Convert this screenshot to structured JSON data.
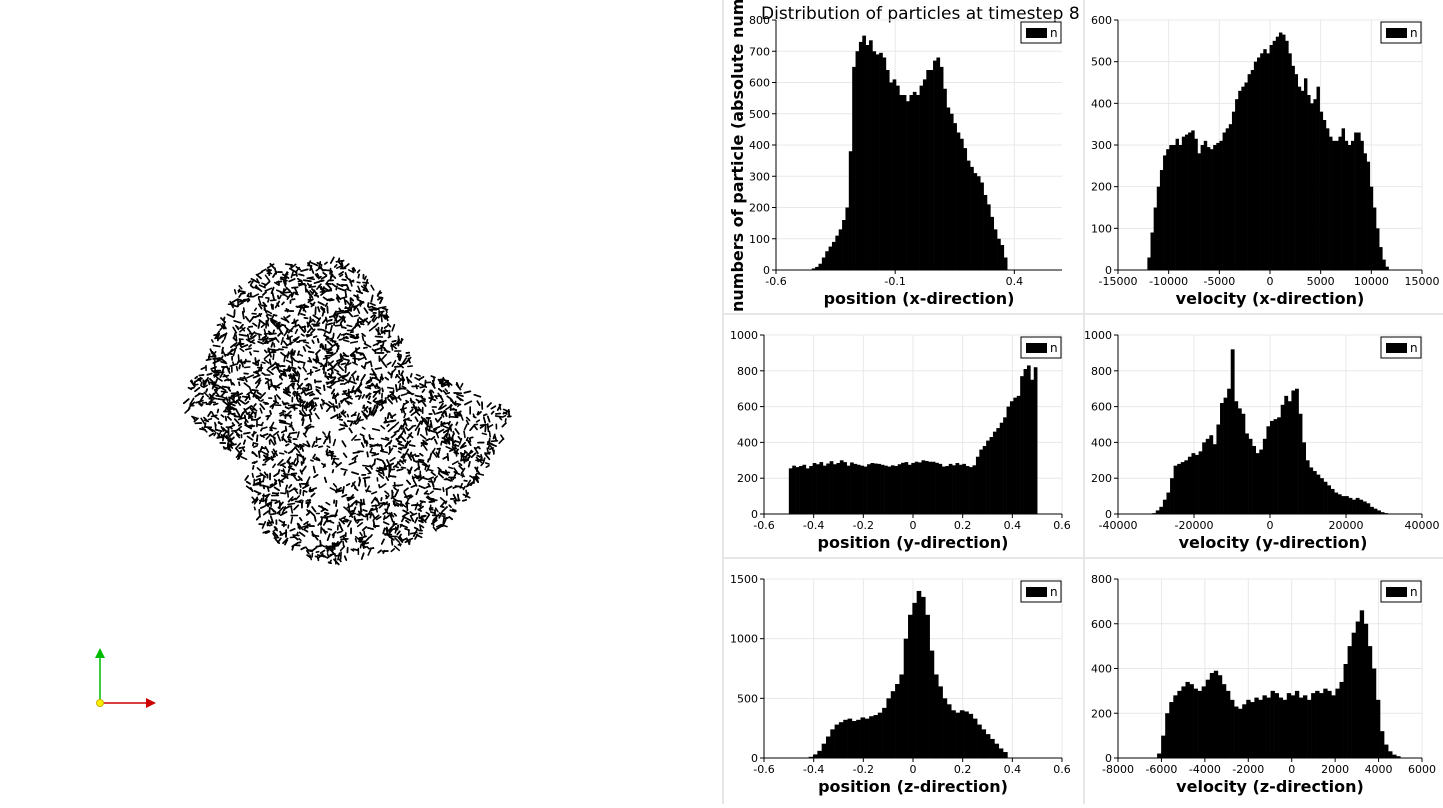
{
  "window": {
    "scene_background": "#ffffff",
    "point_color": "#000000",
    "axes_colors": {
      "x": "#cc0000",
      "y": "#00bb00",
      "origin": "#ffee00"
    }
  },
  "chart_data": [
    {
      "type": "bar",
      "title": "Distribution of particles at timestep 8",
      "ylabel": "numbers of particle (absolute number)",
      "xlabel": "position (x-direction)",
      "legend": [
        "n"
      ],
      "legend_placement": "top-right",
      "grid": true,
      "xlim": [
        -0.6,
        0.6
      ],
      "ylim": [
        0,
        800
      ],
      "xticks": [
        -0.6,
        -0.1,
        0.4
      ],
      "xtick_labels": [
        "-0.6",
        "-0.1",
        "0.4"
      ],
      "yticks": [
        0,
        100,
        200,
        300,
        400,
        500,
        600,
        700,
        800
      ],
      "bin_range": [
        -0.45,
        0.37
      ],
      "values": [
        5,
        10,
        20,
        40,
        60,
        75,
        90,
        110,
        130,
        160,
        200,
        380,
        650,
        700,
        730,
        750,
        720,
        735,
        700,
        690,
        695,
        680,
        640,
        600,
        610,
        590,
        560,
        560,
        540,
        560,
        570,
        560,
        590,
        610,
        640,
        640,
        670,
        680,
        650,
        580,
        520,
        500,
        470,
        440,
        420,
        390,
        350,
        330,
        310,
        300,
        280,
        240,
        210,
        170,
        130,
        100,
        80,
        40
      ]
    },
    {
      "type": "bar",
      "xlabel": "velocity (x-direction)",
      "legend": [
        "n"
      ],
      "legend_placement": "top-right",
      "grid": true,
      "xlim": [
        -15000,
        15000
      ],
      "ylim": [
        0,
        600
      ],
      "xticks": [
        -15000,
        -10000,
        -5000,
        0,
        5000,
        10000,
        15000
      ],
      "xtick_labels": [
        "-15000",
        "-10000",
        "-5000",
        "0",
        "5000",
        "10000",
        "15000"
      ],
      "yticks": [
        0,
        100,
        200,
        300,
        400,
        500,
        600
      ],
      "bin_range": [
        -12100,
        11700
      ],
      "values": [
        30,
        90,
        150,
        200,
        240,
        275,
        290,
        300,
        300,
        315,
        300,
        320,
        325,
        330,
        335,
        315,
        280,
        300,
        310,
        295,
        290,
        300,
        305,
        310,
        330,
        340,
        350,
        380,
        410,
        430,
        440,
        450,
        470,
        480,
        500,
        510,
        520,
        530,
        520,
        540,
        550,
        560,
        570,
        565,
        550,
        520,
        490,
        470,
        440,
        430,
        460,
        420,
        400,
        410,
        440,
        380,
        360,
        340,
        320,
        310,
        310,
        320,
        340,
        310,
        300,
        310,
        330,
        330,
        310,
        280,
        260,
        200,
        150,
        100,
        55,
        25,
        8
      ]
    },
    {
      "type": "bar",
      "xlabel": "position (y-direction)",
      "legend": [
        "n"
      ],
      "legend_placement": "top-right",
      "grid": true,
      "xlim": [
        -0.6,
        0.6
      ],
      "ylim": [
        0,
        1000
      ],
      "xticks": [
        -0.6,
        -0.4,
        -0.2,
        0,
        0.2,
        0.4,
        0.6
      ],
      "xtick_labels": [
        "-0.6",
        "-0.4",
        "-0.2",
        "0",
        "0.2",
        "0.4",
        "0.6"
      ],
      "yticks": [
        0,
        200,
        400,
        600,
        800,
        1000
      ],
      "bin_range": [
        -0.5,
        0.5
      ],
      "values": [
        255,
        270,
        262,
        268,
        275,
        255,
        268,
        285,
        278,
        290,
        270,
        282,
        295,
        278,
        285,
        300,
        290,
        270,
        288,
        280,
        275,
        270,
        265,
        278,
        285,
        282,
        280,
        275,
        270,
        265,
        272,
        268,
        278,
        286,
        290,
        275,
        285,
        292,
        288,
        300,
        296,
        292,
        292,
        286,
        280,
        265,
        268,
        280,
        272,
        285,
        275,
        280,
        268,
        262,
        272,
        320,
        360,
        380,
        410,
        430,
        460,
        480,
        510,
        540,
        600,
        630,
        650,
        660,
        770,
        810,
        830,
        750,
        820
      ]
    },
    {
      "type": "bar",
      "xlabel": "velocity (y-direction)",
      "legend": [
        "n"
      ],
      "legend_placement": "top-right",
      "grid": true,
      "xlim": [
        -40000,
        40000
      ],
      "ylim": [
        0,
        1000
      ],
      "xticks": [
        -40000,
        -20000,
        0,
        20000,
        40000
      ],
      "xtick_labels": [
        "-40000",
        "-20000",
        "0",
        "20000",
        "40000"
      ],
      "yticks": [
        0,
        200,
        400,
        600,
        800,
        1000
      ],
      "bin_range": [
        -31000,
        31000
      ],
      "values": [
        5,
        20,
        40,
        80,
        120,
        200,
        270,
        280,
        290,
        300,
        320,
        340,
        330,
        350,
        400,
        420,
        440,
        390,
        500,
        620,
        650,
        700,
        920,
        630,
        590,
        560,
        450,
        420,
        380,
        340,
        360,
        420,
        490,
        520,
        530,
        540,
        610,
        660,
        630,
        690,
        700,
        560,
        400,
        300,
        260,
        240,
        220,
        200,
        180,
        160,
        140,
        120,
        110,
        100,
        100,
        90,
        80,
        90,
        80,
        70,
        60,
        40,
        30,
        20,
        10,
        5
      ]
    },
    {
      "type": "bar",
      "xlabel": "position (z-direction)",
      "legend": [
        "n"
      ],
      "legend_placement": "top-right",
      "grid": true,
      "xlim": [
        -0.6,
        0.6
      ],
      "ylim": [
        0,
        1500
      ],
      "xticks": [
        -0.6,
        -0.4,
        -0.2,
        0,
        0.2,
        0.4,
        0.6
      ],
      "xtick_labels": [
        "-0.6",
        "-0.4",
        "-0.2",
        "0",
        "0.2",
        "0.4",
        "0.6"
      ],
      "yticks": [
        0,
        500,
        1000,
        1500
      ],
      "bin_range": [
        -0.42,
        0.38
      ],
      "values": [
        10,
        30,
        60,
        120,
        180,
        240,
        280,
        300,
        320,
        330,
        310,
        320,
        340,
        330,
        350,
        360,
        380,
        420,
        500,
        560,
        620,
        700,
        1000,
        1200,
        1300,
        1400,
        1350,
        1200,
        900,
        700,
        600,
        500,
        450,
        400,
        380,
        400,
        390,
        370,
        330,
        280,
        240,
        200,
        160,
        120,
        80,
        50
      ]
    },
    {
      "type": "bar",
      "xlabel": "velocity (z-direction)",
      "legend": [
        "n"
      ],
      "legend_placement": "top-right",
      "grid": true,
      "xlim": [
        -8000,
        6000
      ],
      "ylim": [
        0,
        800
      ],
      "xticks": [
        -8000,
        -6000,
        -4000,
        -2000,
        0,
        2000,
        4000,
        6000
      ],
      "xtick_labels": [
        "-8000",
        "-6000",
        "-4000",
        "-2000",
        "0",
        "2000",
        "4000",
        "6000"
      ],
      "yticks": [
        0,
        200,
        400,
        600,
        800
      ],
      "bin_range": [
        -6200,
        5000
      ],
      "values": [
        20,
        100,
        200,
        250,
        280,
        300,
        320,
        340,
        330,
        310,
        300,
        320,
        350,
        380,
        390,
        370,
        330,
        300,
        260,
        230,
        220,
        240,
        260,
        250,
        270,
        260,
        280,
        270,
        300,
        290,
        270,
        260,
        290,
        280,
        300,
        270,
        280,
        260,
        290,
        300,
        290,
        310,
        300,
        280,
        310,
        340,
        420,
        500,
        560,
        610,
        660,
        600,
        500,
        400,
        260,
        120,
        60,
        30,
        15,
        8
      ]
    }
  ]
}
